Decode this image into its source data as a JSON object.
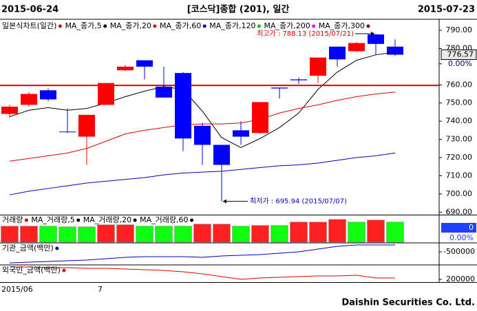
{
  "header": {
    "start": "2015-06-24",
    "title": "[코스닥]종합 (201), 일간",
    "end": "2015-07-23"
  },
  "footer": "Daishin Securities Co. Ltd.",
  "chart_data": [
    {
      "type": "candlestick",
      "legend_title": "일본식차트(일간)",
      "legend_color": "#e00000",
      "categories": [
        "2015/06",
        null,
        null,
        null,
        null,
        "7",
        null,
        null,
        null,
        null,
        null,
        null,
        null,
        null,
        null,
        null,
        null,
        null,
        null,
        null,
        null
      ],
      "open": [
        744,
        749,
        757,
        734.3,
        731.5,
        749,
        768,
        773.5,
        759,
        766.5,
        737.5,
        727,
        735,
        733.5,
        758.5,
        763,
        765,
        781,
        778.5,
        787.7,
        781
      ],
      "high": [
        749,
        756,
        758,
        747,
        743.5,
        761,
        771,
        773.5,
        770,
        767,
        739,
        727,
        740,
        750.5,
        758.5,
        764,
        775,
        781,
        783.5,
        788.13,
        785
      ],
      "low": [
        742,
        748,
        751,
        733.5,
        716,
        749,
        767.5,
        763,
        753,
        723.5,
        716,
        695.94,
        727,
        733,
        752.5,
        760.5,
        761,
        770,
        778,
        776.5,
        776
      ],
      "close": [
        748,
        755,
        752,
        734,
        743.5,
        761,
        770,
        770,
        753,
        730.5,
        727,
        716,
        731.5,
        750.5,
        758,
        762.5,
        775,
        774,
        783,
        782.5,
        776.57
      ],
      "up_color": "#ff0000",
      "down_color": "#0000ff",
      "series": [
        {
          "name": "MA_종가,5",
          "color": "#000000",
          "values": [
            742.5,
            746,
            747.5,
            746,
            747,
            750,
            753.5,
            756.5,
            759,
            757.5,
            745.5,
            731,
            725.5,
            730.5,
            736.5,
            744.5,
            757.5,
            767,
            773.5,
            776.5,
            778
          ]
        },
        {
          "name": "MA_종가,20",
          "color": "#e00000",
          "values": [
            718,
            719.5,
            721,
            722.5,
            725,
            729,
            733,
            735,
            736.5,
            738,
            738.5,
            738.5,
            739,
            741,
            744.5,
            747,
            749,
            751.5,
            753.5,
            755,
            756
          ]
        },
        {
          "name": "MA_종가,60",
          "color": "#0000c0",
          "values": [
            699.5,
            701.5,
            703,
            704.5,
            706,
            707,
            708,
            709,
            710.5,
            711.5,
            712,
            712.5,
            713.5,
            714.5,
            715.5,
            716,
            717,
            718.5,
            720,
            721,
            722.5
          ]
        },
        {
          "name": "MA_종가,120",
          "color": "#00c000",
          "values": [
            null,
            null,
            null,
            null,
            null,
            null,
            null,
            null,
            null,
            null,
            null,
            null,
            null,
            null,
            null,
            null,
            null,
            null,
            null,
            null,
            null
          ]
        },
        {
          "name": "MA_종가,200",
          "color": "#ff00ff",
          "values": [
            null,
            null,
            null,
            null,
            null,
            null,
            null,
            null,
            null,
            null,
            null,
            null,
            null,
            null,
            null,
            null,
            null,
            null,
            null,
            null,
            null
          ]
        },
        {
          "name": "MA_종가,300",
          "color": "#800000",
          "values": [
            null,
            null,
            null,
            null,
            null,
            null,
            null,
            null,
            null,
            null,
            null,
            null,
            null,
            null,
            null,
            null,
            null,
            null,
            null,
            null,
            null
          ]
        }
      ],
      "hline": 759.7,
      "hline_color": "#e00000",
      "current_price": 776.57,
      "annotations": [
        {
          "text": "최고가 : 788.13 (2015/07/21)",
          "color": "#e00000",
          "at": "high"
        },
        {
          "text": "최저가 : 695.94 (2015/07/07)",
          "color": "#0000c0",
          "at": "low"
        }
      ],
      "ylim": [
        688.6,
        795.3
      ],
      "yticks": [
        {
          "value": 690,
          "label": "690.00"
        },
        {
          "value": 700,
          "label": "700.00"
        },
        {
          "value": 710,
          "label": "710.00"
        },
        {
          "value": 720,
          "label": "720.00"
        },
        {
          "value": 730,
          "label": "730.00"
        },
        {
          "value": 740,
          "label": "740.00"
        },
        {
          "value": 750,
          "label": "750.00"
        },
        {
          "value": 760,
          "label": "760.00"
        },
        {
          "value": 780,
          "label": "780.00"
        },
        {
          "value": 790,
          "label": "790.00"
        }
      ],
      "y2lim": [
        -10.75,
        3.08
      ],
      "y2ticks": [
        {
          "value": 0,
          "label": "0.00%"
        }
      ]
    },
    {
      "type": "bar",
      "title": "거래량",
      "values": [
        24,
        24,
        24,
        23,
        23,
        26,
        26,
        24,
        24,
        24,
        27,
        27,
        24,
        25,
        25,
        30,
        30,
        34,
        30,
        33,
        30
      ],
      "colors": [
        "#ff2020",
        "#ff2020",
        "#10ff10",
        "#10ff10",
        "#10ff10",
        "#ff2020",
        "#ff2020",
        "#10ff10",
        "#10ff10",
        "#10ff10",
        "#ff2020",
        "#ff2020",
        "#10ff10",
        "#ff2020",
        "#10ff10",
        "#ff2020",
        "#ff2020",
        "#ff2020",
        "#10ff10",
        "#ff2020",
        "#10ff10"
      ],
      "legend": [
        {
          "name": "MA_거래량,5",
          "color": "#000000"
        },
        {
          "name": "MA_거래량,20",
          "color": "#000000"
        },
        {
          "name": "MA_거래량,60",
          "color": "#000000"
        }
      ],
      "ylim": [
        0,
        40
      ],
      "side_labels": [
        0,
        "0.00%"
      ]
    },
    {
      "type": "line",
      "title": "기관_금액(백만)",
      "color": "#0000c0",
      "values": [
        -1170000,
        -1125000,
        -1085000,
        -1040000,
        -1000000,
        -915000,
        -835000,
        -790000,
        -790000,
        -790000,
        -835000,
        -750000,
        -710000,
        -665000,
        -585000,
        -500000,
        -335000,
        -165000,
        -85000,
        -85000,
        -85000
      ],
      "ylim": [
        -1250000,
        0
      ],
      "yticks": [
        -500000
      ]
    },
    {
      "type": "line",
      "title": "외국인_금액(백만)",
      "color": "#e00000",
      "values": [
        650000,
        650000,
        625000,
        625000,
        600000,
        600000,
        575000,
        550000,
        525000,
        475000,
        400000,
        300000,
        200000,
        250000,
        275000,
        300000,
        325000,
        325000,
        350000,
        250000,
        250000
      ],
      "ylim": [
        100000,
        700000
      ],
      "yticks": [
        200000
      ]
    }
  ]
}
